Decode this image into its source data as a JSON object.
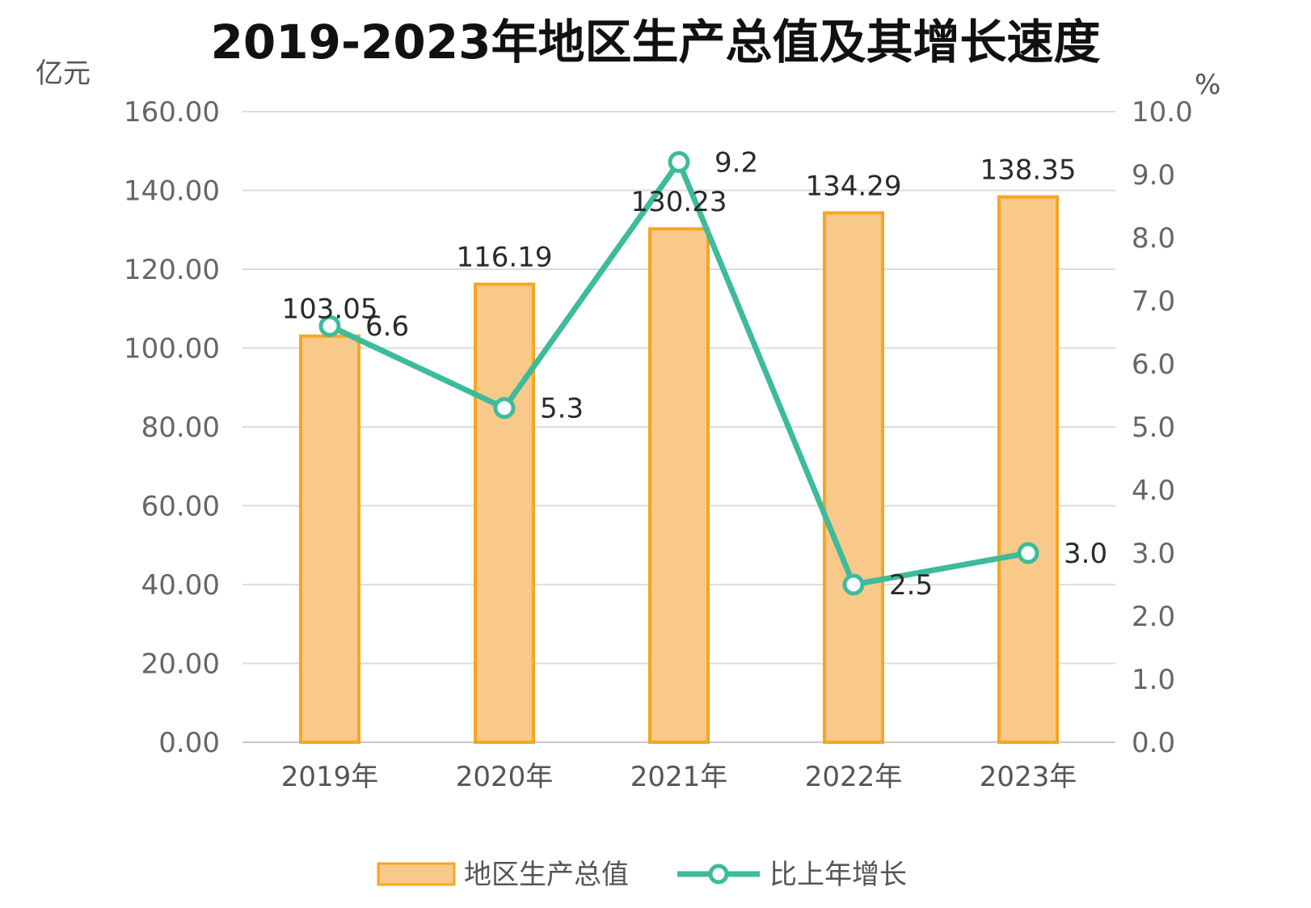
{
  "chart_data": {
    "type": "bar+line",
    "title": "2019-2023年地区生产总值及其增长速度",
    "left_unit": "亿元",
    "right_unit": "%",
    "categories": [
      "2019年",
      "2020年",
      "2021年",
      "2022年",
      "2023年"
    ],
    "left_axis": {
      "ylim": [
        0,
        160
      ],
      "ticks": [
        "0.00",
        "20.00",
        "40.00",
        "60.00",
        "80.00",
        "100.00",
        "120.00",
        "140.00",
        "160.00"
      ]
    },
    "right_axis": {
      "ylim": [
        0,
        10
      ],
      "ticks": [
        "0.0",
        "1.0",
        "2.0",
        "3.0",
        "4.0",
        "5.0",
        "6.0",
        "7.0",
        "8.0",
        "9.0",
        "10.0"
      ]
    },
    "grid": true,
    "legend_position": "bottom",
    "series": [
      {
        "name": "地区生产总值",
        "type": "bar",
        "axis": "left",
        "values": [
          103.05,
          116.19,
          130.23,
          134.29,
          138.35
        ],
        "labels": [
          "103.05",
          "116.19",
          "130.23",
          "134.29",
          "138.35"
        ],
        "color": "#F9C98A",
        "stroke": "#F5A623"
      },
      {
        "name": "比上年增长",
        "type": "line",
        "axis": "right",
        "values": [
          6.6,
          5.3,
          9.2,
          2.5,
          3.0
        ],
        "labels": [
          "6.6",
          "5.3",
          "9.2",
          "2.5",
          "3.0"
        ],
        "color": "#3DBB9A"
      }
    ]
  }
}
